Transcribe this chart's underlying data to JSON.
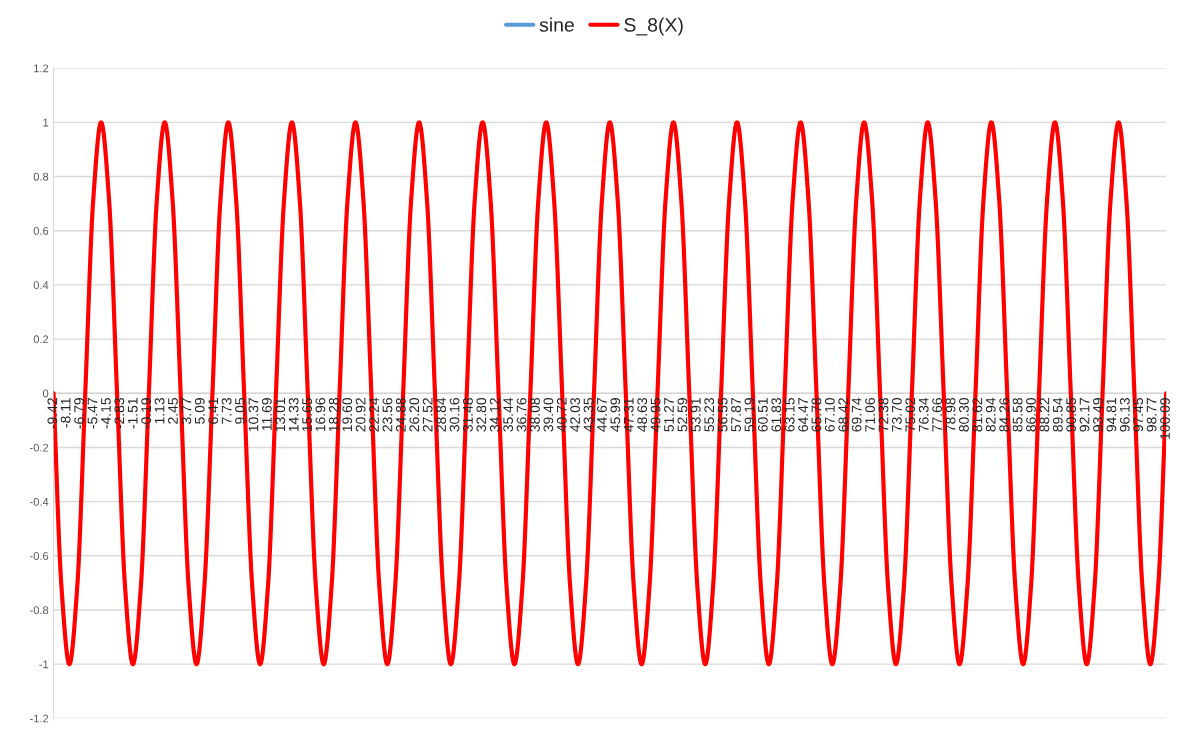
{
  "chart_data": {
    "type": "line",
    "x": [
      -9.42,
      -8.65,
      -7.86,
      -7.08,
      -6.3,
      -5.52,
      -4.74,
      -3.95,
      -3.17,
      -2.39,
      -1.61,
      -0.82,
      -0.04,
      0.74,
      1.52,
      2.3,
      3.09,
      3.87,
      4.65,
      5.43,
      6.22,
      7.0,
      7.78,
      8.56,
      9.34,
      10.13,
      10.91,
      11.69,
      12.47,
      13.26,
      14.04,
      14.82,
      15.6,
      16.39,
      17.17,
      17.95,
      18.73,
      19.51,
      20.3,
      21.08,
      21.86,
      22.64,
      23.43,
      24.21,
      24.99,
      25.77,
      26.56,
      27.34,
      28.12,
      28.9,
      29.68,
      30.47,
      31.25,
      32.03,
      32.81,
      33.6,
      34.38,
      35.16,
      35.94,
      36.73,
      37.51,
      38.29,
      39.07,
      39.85,
      40.64,
      41.42,
      42.2,
      42.98,
      43.77,
      44.55,
      45.33,
      46.11,
      46.9,
      47.68,
      48.46,
      49.24,
      50.02,
      50.81,
      51.59,
      52.37,
      53.15,
      53.94,
      54.72,
      55.5,
      56.28,
      57.07,
      57.85,
      58.63,
      59.41,
      60.19,
      60.98,
      61.76,
      62.54,
      63.32,
      64.11,
      64.89,
      65.67,
      66.45,
      67.23,
      68.02,
      68.8,
      69.58,
      70.36,
      71.15,
      71.93,
      72.71,
      73.49,
      74.28,
      75.06,
      75.84,
      76.62,
      77.4,
      78.19,
      78.97,
      79.75,
      80.53,
      81.32,
      82.1,
      82.88,
      83.66,
      84.44,
      85.23,
      86.01,
      86.79,
      87.57,
      88.36,
      89.14,
      89.92,
      90.7,
      91.49,
      92.27,
      93.05,
      93.83,
      94.61,
      95.4,
      96.18,
      96.96,
      97.74,
      98.53,
      99.31,
      100.09
    ],
    "series": [
      {
        "name": "sine",
        "color": "#5b9bd5",
        "values": [
          null,
          null,
          null,
          null,
          null,
          null,
          null,
          null,
          null,
          null,
          null,
          null,
          null,
          null,
          null,
          null,
          null,
          null,
          null,
          null,
          null,
          null,
          null,
          null,
          null,
          null,
          null,
          null,
          null,
          null,
          null,
          null,
          null,
          null,
          null,
          null,
          null,
          null,
          null,
          null,
          null,
          null,
          null,
          null,
          null,
          null,
          null,
          null,
          null,
          null,
          null,
          null,
          null,
          null,
          null,
          null,
          null,
          null,
          null,
          null,
          null,
          null,
          null,
          null,
          null,
          null,
          null,
          null,
          null,
          null,
          null,
          null,
          null,
          null,
          null,
          null,
          null,
          null,
          null,
          null,
          null,
          null,
          null,
          null,
          null,
          null,
          null,
          null,
          null,
          null,
          null,
          null,
          null,
          null,
          null,
          null,
          null,
          null,
          null,
          null,
          null,
          null,
          null,
          null,
          null,
          null,
          null,
          null,
          null,
          null,
          null,
          null,
          null,
          null,
          null,
          null,
          null,
          null,
          null,
          null,
          null,
          null,
          null,
          null,
          null,
          null,
          null,
          null,
          null,
          null,
          null,
          null,
          null,
          null,
          null,
          null,
          null,
          null,
          null,
          null,
          null
        ]
      },
      {
        "name": "S_8(X)",
        "color": "#ff0000",
        "values": [
          0,
          -0.71,
          -1,
          -0.71,
          0,
          0.71,
          1,
          0.71,
          0,
          -0.71,
          -1,
          -0.71,
          0,
          0.71,
          1,
          0.71,
          0,
          -0.71,
          -1,
          -0.71,
          0,
          0.71,
          1,
          0.71,
          0,
          -0.71,
          -1,
          -0.71,
          0,
          0.71,
          1,
          0.71,
          0,
          -0.71,
          -1,
          -0.71,
          0,
          0.71,
          1,
          0.71,
          0,
          -0.71,
          -1,
          -0.71,
          0,
          0.71,
          1,
          0.71,
          0,
          -0.71,
          -1,
          -0.71,
          0,
          0.71,
          1,
          0.71,
          0,
          -0.71,
          -1,
          -0.71,
          0,
          0.71,
          1,
          0.71,
          0,
          -0.71,
          -1,
          -0.71,
          0,
          0.71,
          1,
          0.71,
          0,
          -0.71,
          -1,
          -0.71,
          0,
          0.71,
          1,
          0.71,
          0,
          -0.71,
          -1,
          -0.71,
          0,
          0.71,
          1,
          0.71,
          0,
          -0.71,
          -1,
          -0.71,
          0,
          0.71,
          1,
          0.71,
          0,
          -0.71,
          -1,
          -0.71,
          0,
          0.71,
          1,
          0.71,
          0,
          -0.71,
          -1,
          -0.71,
          0,
          0.71,
          1,
          0.71,
          0,
          -0.71,
          -1,
          -0.71,
          0,
          0.71,
          1,
          0.71,
          0,
          -0.71,
          -1,
          -0.71,
          0,
          0.71,
          1,
          0.71,
          0,
          -0.71,
          -1,
          -0.71,
          0,
          0.71,
          1,
          0.71,
          0,
          -0.71,
          -1,
          -0.71,
          0
        ]
      }
    ],
    "xlim": [
      -9.42,
      100.09
    ],
    "xticks": [
      -9.42,
      -8.11,
      -6.79,
      -5.47,
      -4.15,
      -2.83,
      -1.51,
      -0.19,
      1.13,
      2.45,
      3.77,
      5.09,
      6.41,
      7.73,
      9.05,
      10.37,
      11.69,
      13.01,
      14.33,
      15.65,
      16.96,
      18.28,
      {
        "value": 19.6,
        "label": "19.60"
      },
      20.92,
      22.24,
      23.56,
      24.88,
      {
        "value": 26.2,
        "label": "26.20"
      },
      27.52,
      28.84,
      30.16,
      31.48,
      {
        "value": 32.8,
        "label": "32.80"
      },
      34.12,
      35.44,
      36.76,
      38.08,
      {
        "value": 39.4,
        "label": "39.40"
      },
      40.72,
      42.03,
      43.35,
      44.67,
      45.99,
      47.31,
      48.63,
      49.95,
      51.27,
      52.59,
      53.91,
      55.23,
      56.55,
      57.87,
      59.19,
      60.51,
      61.83,
      63.15,
      64.47,
      65.78,
      {
        "value": 67.1,
        "label": "67.10"
      },
      68.42,
      69.74,
      71.06,
      72.38,
      {
        "value": 73.7,
        "label": "73.70"
      },
      75.02,
      76.34,
      77.66,
      78.98,
      {
        "value": 80.3,
        "label": "80.30"
      },
      81.62,
      82.94,
      84.26,
      85.58,
      {
        "value": 86.9,
        "label": "86.90"
      },
      88.22,
      89.54,
      90.85,
      92.17,
      93.49,
      94.81,
      96.13,
      97.45,
      98.77,
      100.09
    ],
    "ylim": [
      -1.2,
      1.2
    ],
    "yticks": [
      -1.2,
      -1,
      -0.8,
      -0.6,
      -0.4,
      -0.2,
      0,
      0.2,
      0.4,
      0.6,
      0.8,
      1,
      1.2
    ],
    "grid": "y",
    "legend": "top",
    "marker": "none",
    "line_style": "solid"
  }
}
